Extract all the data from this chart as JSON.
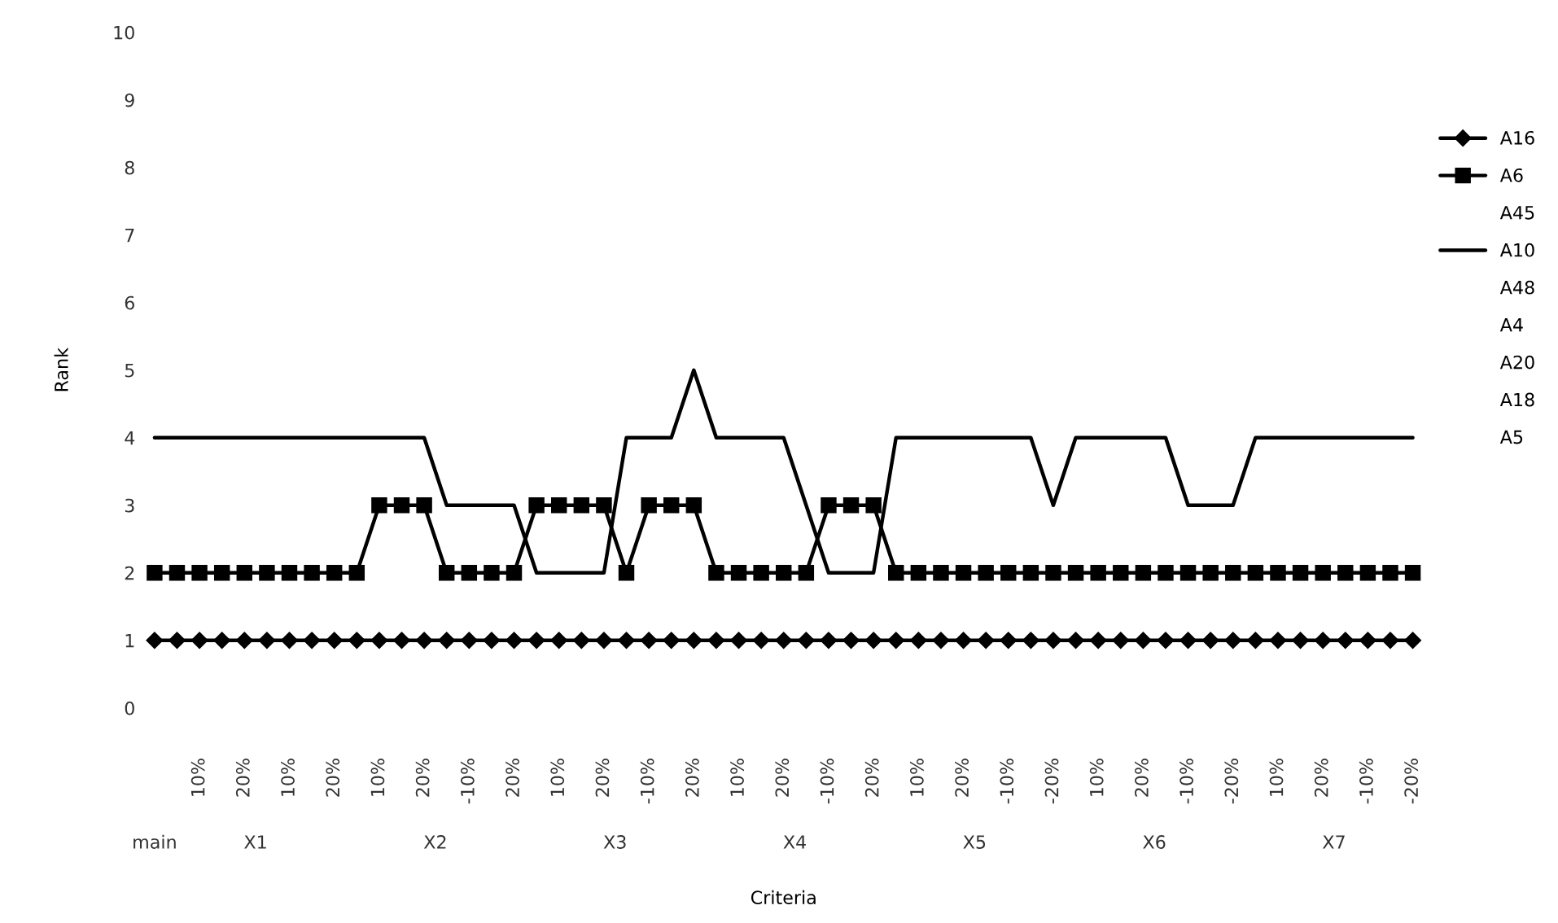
{
  "chart_data": {
    "type": "line",
    "xlabel": "Criteria",
    "ylabel": "Rank",
    "categories": [
      null,
      null,
      "10%",
      null,
      "20%",
      null,
      "10%",
      null,
      "20%",
      null,
      "10%",
      null,
      "20%",
      null,
      "-10%",
      null,
      "20%",
      null,
      "10%",
      null,
      "20%",
      null,
      "-10%",
      null,
      "20%",
      null,
      "10%",
      null,
      "20%",
      null,
      "-10%",
      null,
      "20%",
      null,
      "10%",
      null,
      "20%",
      null,
      "-10%",
      null,
      "-20%",
      null,
      "10%",
      null,
      "20%",
      null,
      "-10%",
      null,
      "-20%",
      null,
      "10%",
      null,
      "20%",
      null,
      "-10%",
      null,
      "-20%"
    ],
    "annotations": [
      "main",
      "X1",
      "X2",
      "X3",
      "X4",
      "X5",
      "X6",
      "X7"
    ],
    "ylim": [
      0,
      10
    ],
    "yticks": [
      0,
      1,
      2,
      3,
      4,
      5,
      6,
      7,
      8,
      9,
      10
    ],
    "grid": false,
    "legend": "right",
    "series": [
      {
        "name": "A16",
        "color": "#000000",
        "marker": "diamond",
        "values": [
          1,
          1,
          1,
          1,
          1,
          1,
          1,
          1,
          1,
          1,
          1,
          1,
          1,
          1,
          1,
          1,
          1,
          1,
          1,
          1,
          1,
          1,
          1,
          1,
          1,
          1,
          1,
          1,
          1,
          1,
          1,
          1,
          1,
          1,
          1,
          1,
          1,
          1,
          1,
          1,
          1,
          1,
          1,
          1,
          1,
          1,
          1,
          1,
          1,
          1,
          1,
          1,
          1,
          1,
          1,
          1,
          1
        ]
      },
      {
        "name": "A6",
        "color": "#000000",
        "marker": "square",
        "values": [
          2,
          2,
          2,
          2,
          2,
          2,
          2,
          2,
          2,
          2,
          3,
          3,
          3,
          2,
          2,
          2,
          2,
          3,
          3,
          3,
          3,
          2,
          3,
          3,
          3,
          2,
          2,
          2,
          2,
          2,
          3,
          3,
          3,
          2,
          2,
          2,
          2,
          2,
          2,
          2,
          2,
          2,
          2,
          2,
          2,
          2,
          2,
          2,
          2,
          2,
          2,
          2,
          2,
          2,
          2,
          2,
          2
        ]
      },
      {
        "name": "A45",
        "marker": "none",
        "values": [
          null,
          null,
          null,
          null,
          null,
          null,
          null,
          null,
          null,
          null,
          null,
          null,
          null,
          null,
          null,
          null,
          null,
          null,
          null,
          null,
          null,
          null,
          null,
          null,
          null,
          null,
          null,
          null,
          null,
          null,
          null,
          null,
          null,
          null,
          null,
          null,
          null,
          null,
          null,
          null,
          null,
          null,
          null,
          null,
          null,
          null,
          null,
          null,
          null,
          null,
          null,
          null,
          null,
          null,
          null,
          null,
          null
        ]
      },
      {
        "name": "A10",
        "color": "#000000",
        "marker": "none",
        "values": [
          4,
          4,
          4,
          4,
          4,
          4,
          4,
          4,
          4,
          4,
          4,
          4,
          4,
          3,
          3,
          3,
          3,
          2,
          2,
          2,
          2,
          4,
          4,
          4,
          5,
          4,
          4,
          4,
          4,
          3,
          2,
          2,
          2,
          4,
          4,
          4,
          4,
          4,
          4,
          4,
          3,
          4,
          4,
          4,
          4,
          4,
          3,
          3,
          3,
          4,
          4,
          4,
          4,
          4,
          4,
          4,
          4
        ]
      },
      {
        "name": "A48",
        "marker": "none",
        "values": [
          null,
          null,
          null,
          null,
          null,
          null,
          null,
          null,
          null,
          null,
          null,
          null,
          null,
          null,
          null,
          null,
          null,
          null,
          null,
          null,
          null,
          null,
          null,
          null,
          null,
          null,
          null,
          null,
          null,
          null,
          null,
          null,
          null,
          null,
          null,
          null,
          null,
          null,
          null,
          null,
          null,
          null,
          null,
          null,
          null,
          null,
          null,
          null,
          null,
          null,
          null,
          null,
          null,
          null,
          null,
          null,
          null
        ]
      },
      {
        "name": "A4",
        "marker": "none",
        "values": [
          null,
          null,
          null,
          null,
          null,
          null,
          null,
          null,
          null,
          null,
          null,
          null,
          null,
          null,
          null,
          null,
          null,
          null,
          null,
          null,
          null,
          null,
          null,
          null,
          null,
          null,
          null,
          null,
          null,
          null,
          null,
          null,
          null,
          null,
          null,
          null,
          null,
          null,
          null,
          null,
          null,
          null,
          null,
          null,
          null,
          null,
          null,
          null,
          null,
          null,
          null,
          null,
          null,
          null,
          null,
          null,
          null
        ]
      },
      {
        "name": "A20",
        "marker": "none",
        "values": [
          null,
          null,
          null,
          null,
          null,
          null,
          null,
          null,
          null,
          null,
          null,
          null,
          null,
          null,
          null,
          null,
          null,
          null,
          null,
          null,
          null,
          null,
          null,
          null,
          null,
          null,
          null,
          null,
          null,
          null,
          null,
          null,
          null,
          null,
          null,
          null,
          null,
          null,
          null,
          null,
          null,
          null,
          null,
          null,
          null,
          null,
          null,
          null,
          null,
          null,
          null,
          null,
          null,
          null,
          null,
          null,
          null
        ]
      },
      {
        "name": "A18",
        "marker": "none",
        "values": [
          null,
          null,
          null,
          null,
          null,
          null,
          null,
          null,
          null,
          null,
          null,
          null,
          null,
          null,
          null,
          null,
          null,
          null,
          null,
          null,
          null,
          null,
          null,
          null,
          null,
          null,
          null,
          null,
          null,
          null,
          null,
          null,
          null,
          null,
          null,
          null,
          null,
          null,
          null,
          null,
          null,
          null,
          null,
          null,
          null,
          null,
          null,
          null,
          null,
          null,
          null,
          null,
          null,
          null,
          null,
          null,
          null
        ]
      },
      {
        "name": "A5",
        "marker": "none",
        "values": [
          null,
          null,
          null,
          null,
          null,
          null,
          null,
          null,
          null,
          null,
          null,
          null,
          null,
          null,
          null,
          null,
          null,
          null,
          null,
          null,
          null,
          null,
          null,
          null,
          null,
          null,
          null,
          null,
          null,
          null,
          null,
          null,
          null,
          null,
          null,
          null,
          null,
          null,
          null,
          null,
          null,
          null,
          null,
          null,
          null,
          null,
          null,
          null,
          null,
          null,
          null,
          null,
          null,
          null,
          null,
          null,
          null
        ]
      }
    ]
  }
}
